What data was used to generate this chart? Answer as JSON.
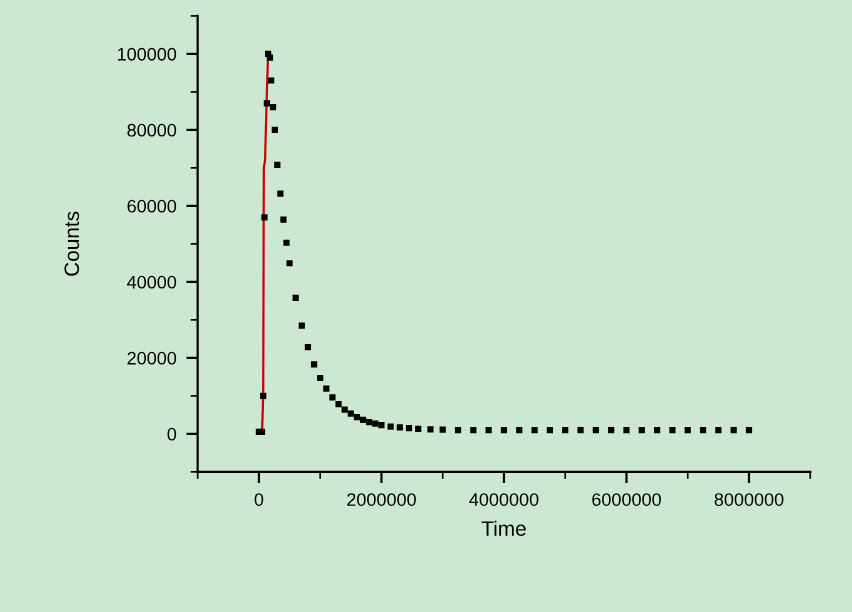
{
  "chart_data": {
    "type": "scatter",
    "xlabel": "Time",
    "ylabel": "Counts",
    "xlim": [
      -1000000,
      9000000
    ],
    "xticks": [
      0,
      2000000,
      4000000,
      6000000,
      8000000
    ],
    "ylim": [
      -10000,
      110000
    ],
    "yticks": [
      0,
      20000,
      40000,
      60000,
      80000,
      100000
    ],
    "grid": false,
    "legend": false,
    "marker": "square",
    "series": [
      {
        "color": "#000000",
        "x": [
          0,
          50000,
          70000,
          90000,
          130000,
          150000,
          180000,
          200000,
          230000,
          260000,
          300000,
          350000,
          400000,
          450000,
          500000,
          600000,
          700000,
          800000,
          900000,
          1000000,
          1100000,
          1200000,
          1300000,
          1400000,
          1500000,
          1600000,
          1700000,
          1800000,
          1900000,
          2000000,
          2150000,
          2300000,
          2450000,
          2600000,
          2800000,
          3000000,
          3250000,
          3500000,
          3750000,
          4000000,
          4250000,
          4500000,
          4750000,
          5000000,
          5250000,
          5500000,
          5750000,
          6000000,
          6250000,
          6500000,
          6750000,
          7000000,
          7250000,
          7500000,
          7750000,
          8000000
        ],
        "values": [
          500,
          500,
          10000,
          57000,
          87000,
          100000,
          99000,
          93000,
          86000,
          80000,
          70800,
          63200,
          56400,
          50300,
          44900,
          35800,
          28500,
          22800,
          18300,
          14700,
          11900,
          9600,
          7800,
          6400,
          5300,
          4400,
          3700,
          3100,
          2700,
          2300,
          1900,
          1700,
          1500,
          1300,
          1200,
          1100,
          1000,
          1000,
          1000,
          1000,
          1000,
          1000,
          1000,
          1000,
          1000,
          1000,
          1000,
          1000,
          1000,
          1000,
          1000,
          1000,
          1000,
          1000,
          1000,
          1000
        ]
      },
      {
        "type": "line",
        "color": "#cc0000",
        "marker": "none",
        "x": [
          50000,
          70000,
          80000,
          100000,
          130000,
          150000
        ],
        "values": [
          0,
          10000,
          70000,
          72000,
          90000,
          100000
        ]
      }
    ]
  }
}
